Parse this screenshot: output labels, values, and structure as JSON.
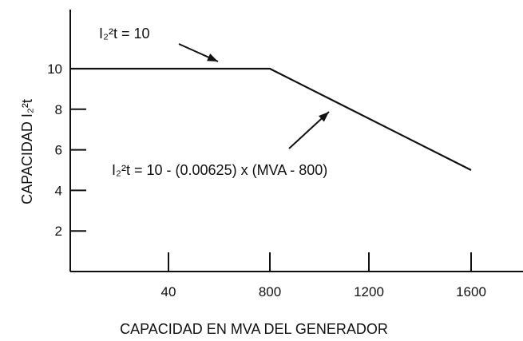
{
  "chart_data": {
    "type": "line",
    "xlabel": "CAPACIDAD EN MVA DEL GENERADOR",
    "ylabel": "CAPACIDAD I₂²t",
    "x_ticks": [
      "40",
      "800",
      "1200",
      "1600"
    ],
    "y_ticks": [
      "10",
      "8",
      "6",
      "4",
      "2"
    ],
    "series": [
      {
        "x": [
          "0",
          "800",
          "1600"
        ],
        "y": [
          10,
          10,
          5
        ]
      }
    ],
    "annotations": [
      {
        "text": "I₂²t = 10",
        "points_to": "horizontal segment"
      },
      {
        "text": "I₂²t = 10 - (0.00625) x (MVA - 800)",
        "points_to": "sloped segment"
      }
    ],
    "grid": false,
    "legend": "none"
  }
}
